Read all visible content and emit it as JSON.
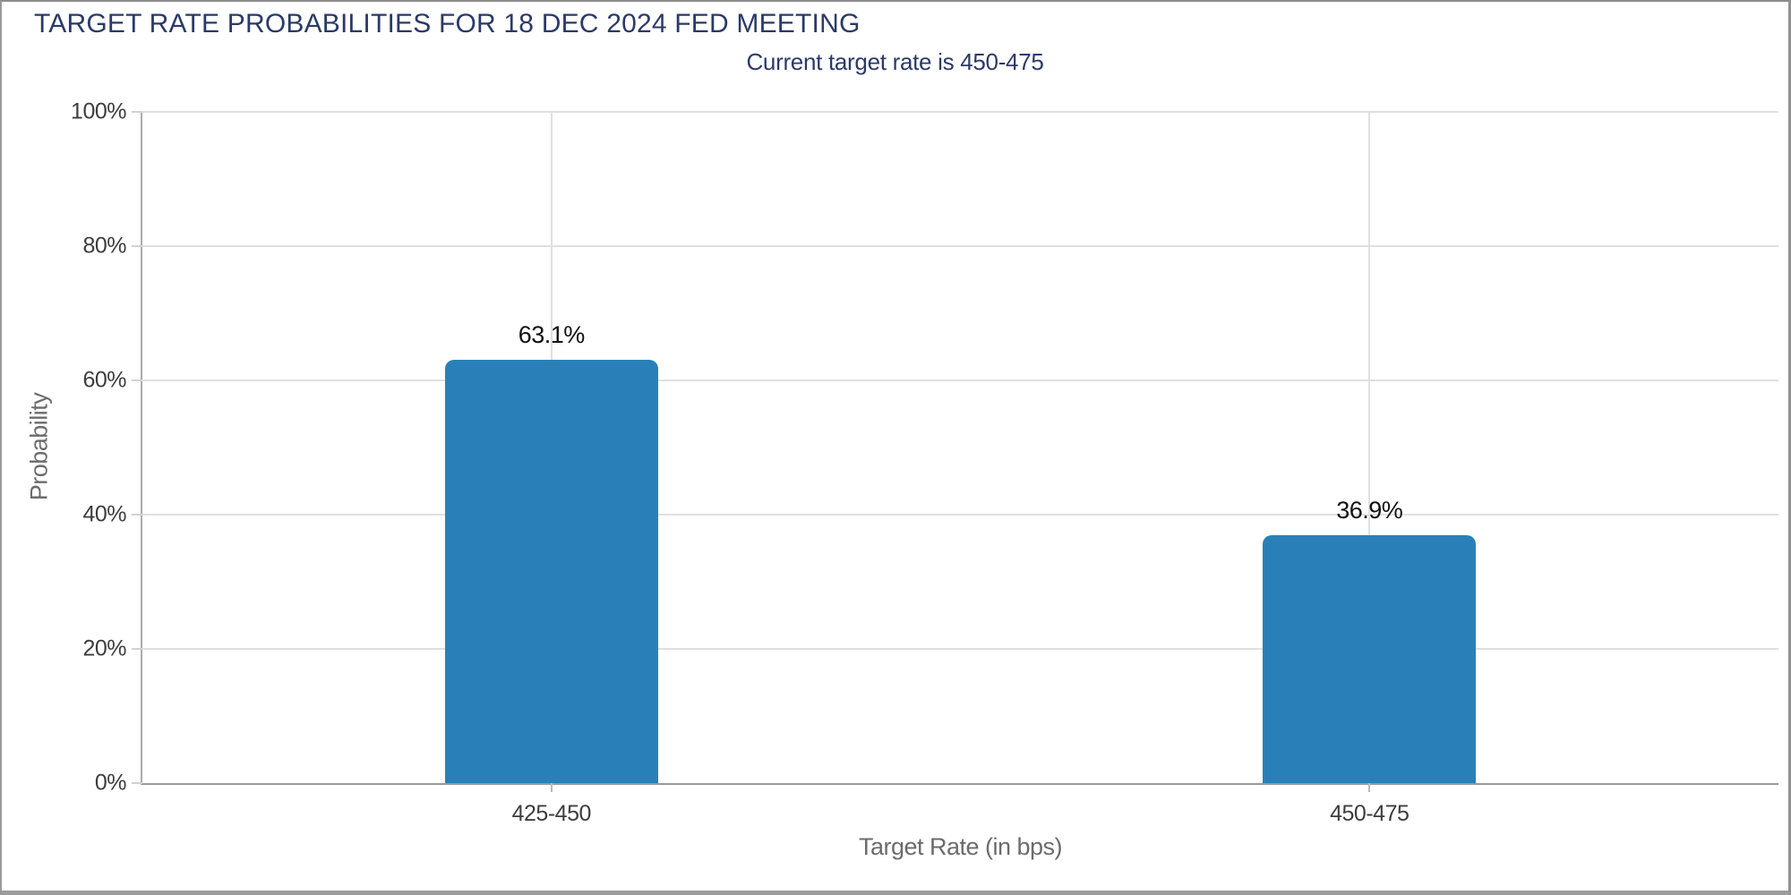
{
  "page": {
    "title": "TARGET RATE PROBABILITIES FOR 18 DEC 2024 FED MEETING",
    "subtitle": "Current target rate is 450-475"
  },
  "chart_data": {
    "type": "bar",
    "title": "TARGET RATE PROBABILITIES FOR 18 DEC 2024 FED MEETING",
    "subtitle": "Current target rate is 450-475",
    "categories": [
      "425-450",
      "450-475"
    ],
    "values": [
      63.1,
      36.9
    ],
    "value_labels": [
      "63.1%",
      "36.9%"
    ],
    "xlabel": "Target Rate (in bps)",
    "ylabel": "Probability",
    "ylim": [
      0,
      100
    ],
    "ytick_step": 20,
    "ytick_labels": [
      "0%",
      "20%",
      "40%",
      "60%",
      "80%",
      "100%"
    ],
    "grid": true,
    "legend": "none",
    "colors": {
      "bar": "#2980b9",
      "title_text": "#2b3a67",
      "tick_text": "#3d3d3d",
      "axis_title_text": "#6b6b6b",
      "gridline": "#e0e0e0",
      "axis_line": "#9a9a9a"
    }
  }
}
